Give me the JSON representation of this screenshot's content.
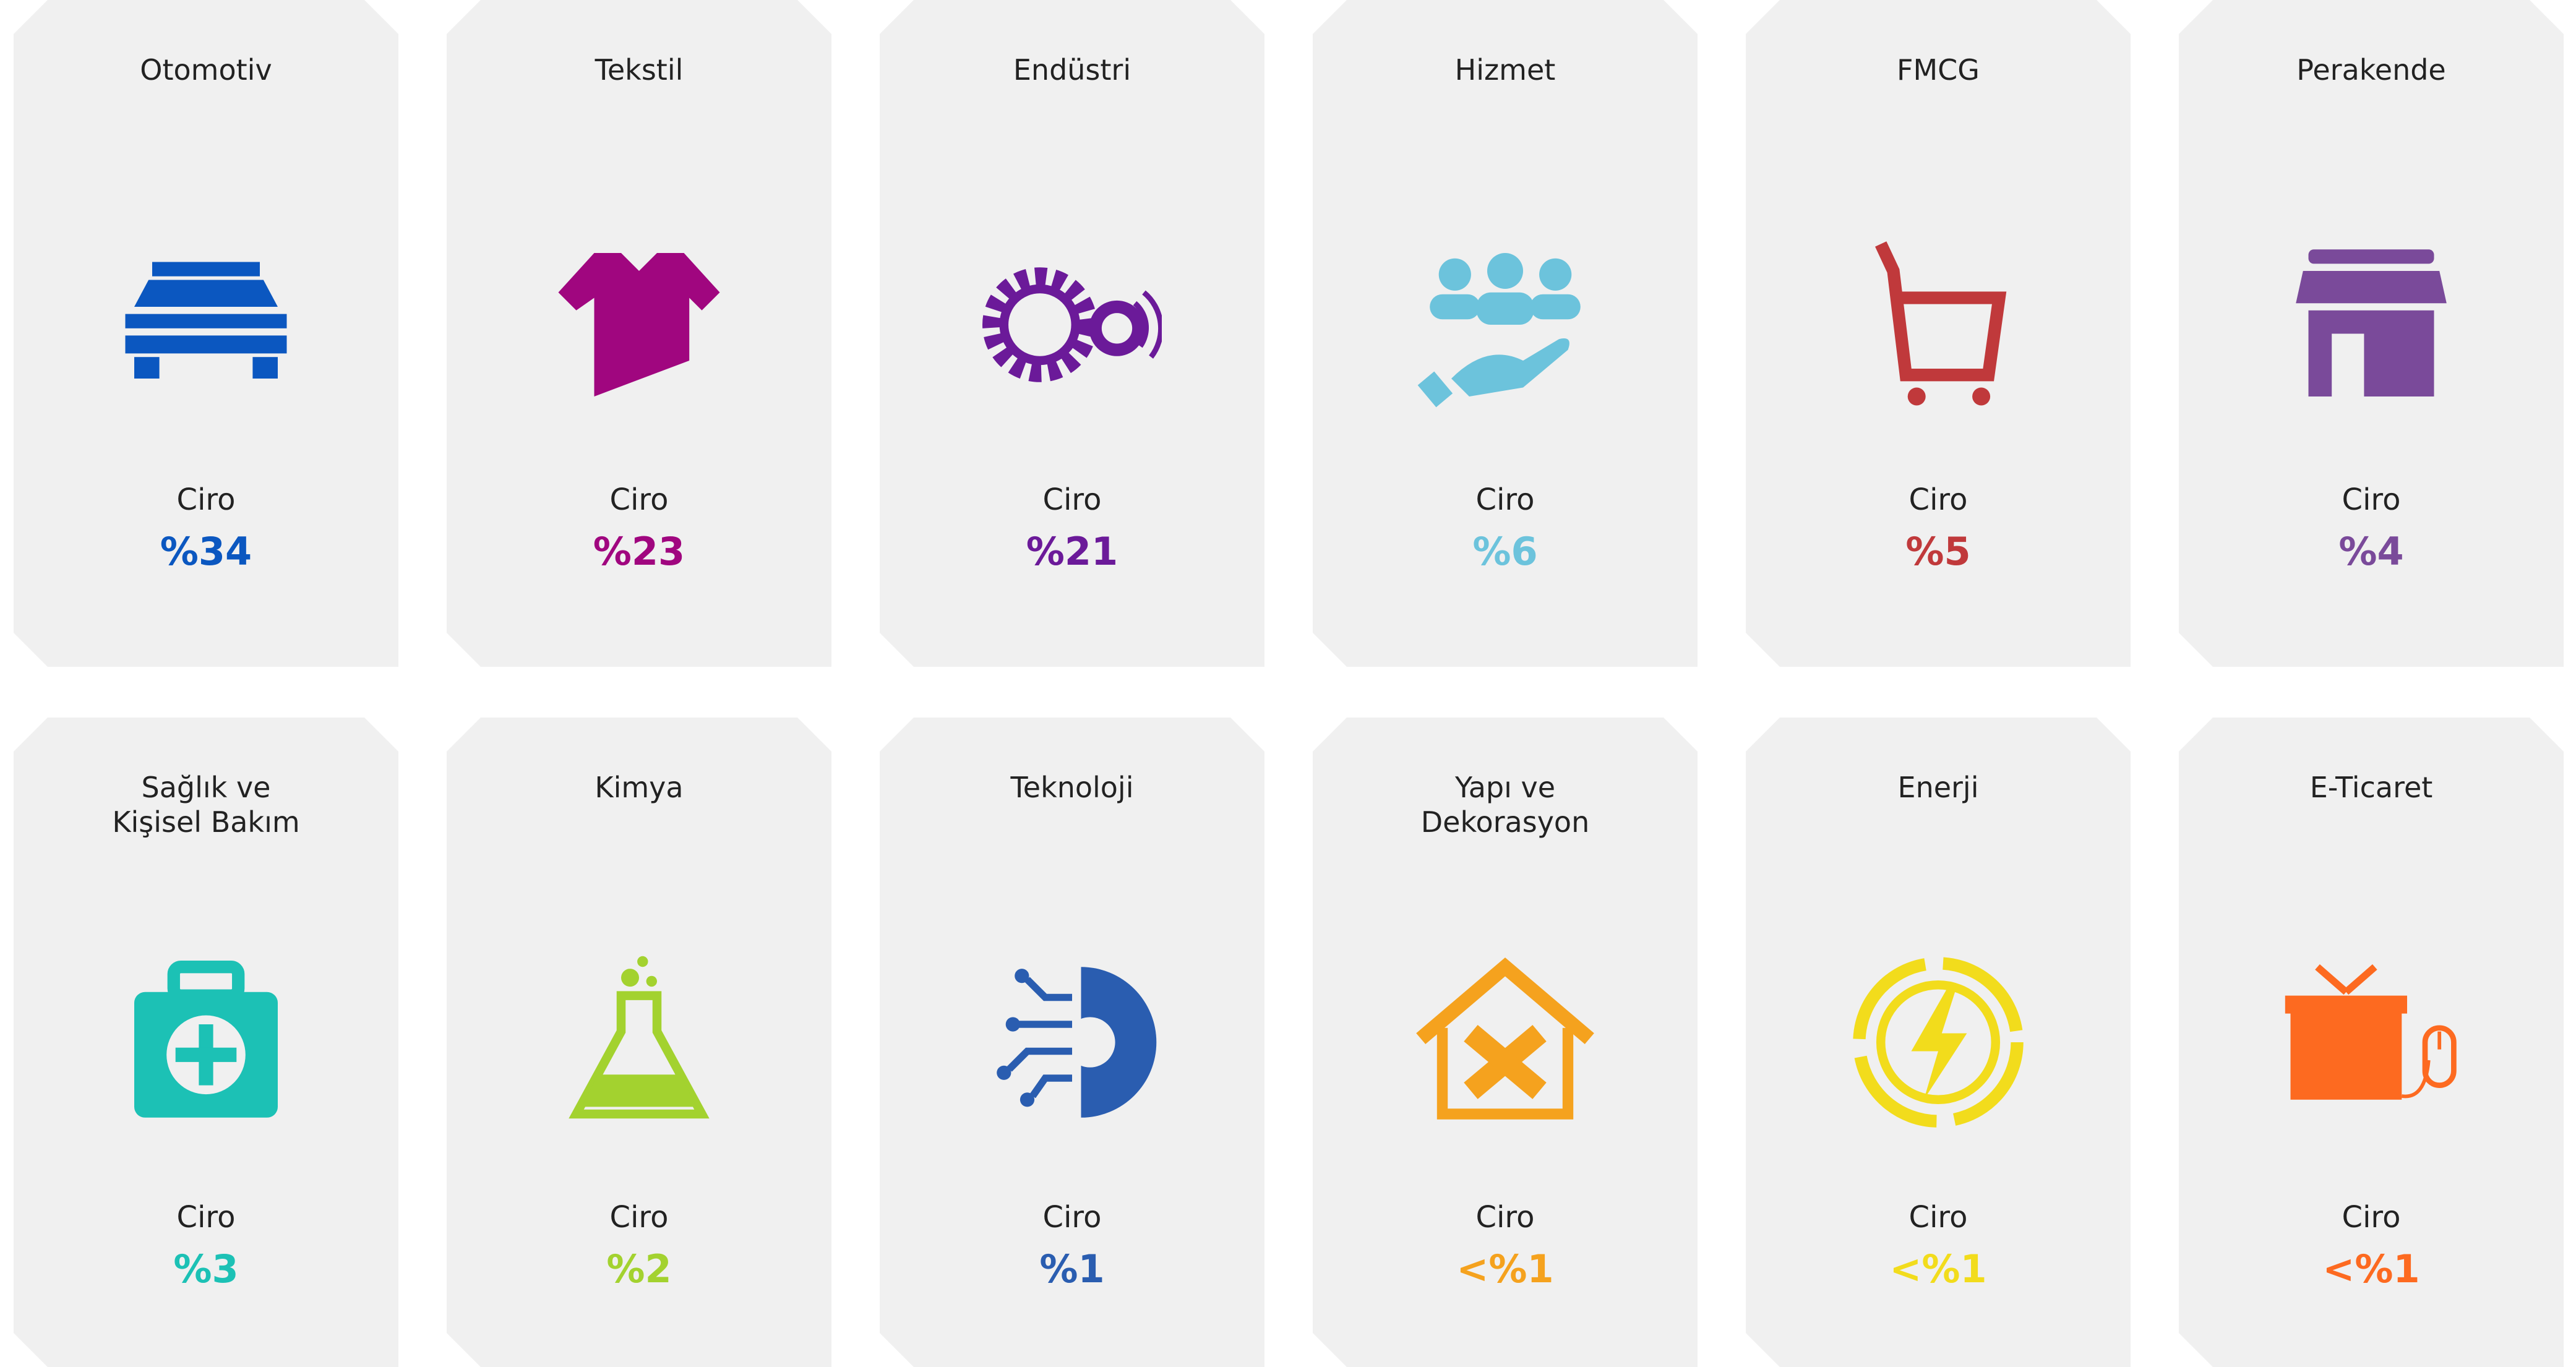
{
  "cards": [
    {
      "title": "Otomotiv",
      "label": "Ciro",
      "value": "%34",
      "color": "#0b57c0"
    },
    {
      "title": "Tekstil",
      "label": "Ciro",
      "value": "%23",
      "color": "#a0067f"
    },
    {
      "title": "Endüstri",
      "label": "Ciro",
      "value": "%21",
      "color": "#6b1a99"
    },
    {
      "title": "Hizmet",
      "label": "Ciro",
      "value": "%6",
      "color": "#6cc3dc"
    },
    {
      "title": "FMCG",
      "label": "Ciro",
      "value": "%5",
      "color": "#c0393b"
    },
    {
      "title": "Perakende",
      "label": "Ciro",
      "value": "%4",
      "color": "#7a4a9a"
    },
    {
      "title": "Sağlık ve\nKişisel Bakım",
      "label": "Ciro",
      "value": "%3",
      "color": "#1cc1b5"
    },
    {
      "title": "Kimya",
      "label": "Ciro",
      "value": "%2",
      "color": "#a3d22f"
    },
    {
      "title": "Teknoloji",
      "label": "Ciro",
      "value": "%1",
      "color": "#2a5db0"
    },
    {
      "title": "Yapı ve\nDekorasyon",
      "label": "Ciro",
      "value": "<%1",
      "color": "#f5a21e"
    },
    {
      "title": "Enerji",
      "label": "Ciro",
      "value": "<%1",
      "color": "#f2dc1c"
    },
    {
      "title": "E-Ticaret",
      "label": "Ciro",
      "value": "<%1",
      "color": "#fd6a20"
    }
  ]
}
